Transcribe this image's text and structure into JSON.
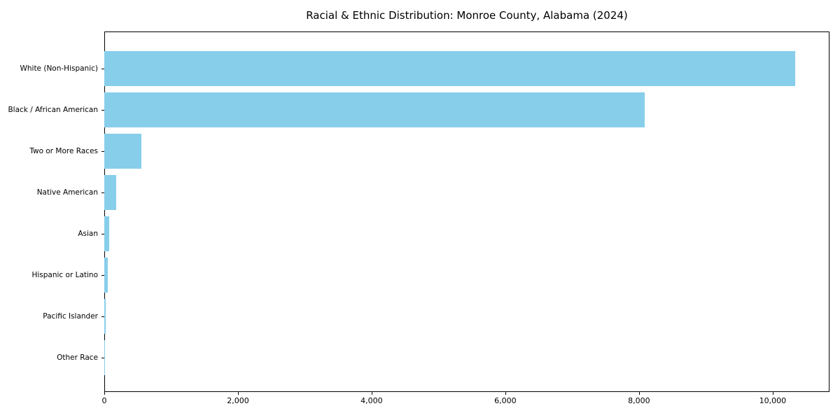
{
  "chart_data": {
    "type": "bar",
    "orientation": "horizontal",
    "title": "Racial & Ethnic Distribution: Monroe County, Alabama (2024)",
    "categories": [
      "White (Non-Hispanic)",
      "Black / African American",
      "Two or More Races",
      "Native American",
      "Asian",
      "Hispanic or Latino",
      "Pacific Islander",
      "Other Race"
    ],
    "values": [
      10340,
      8090,
      550,
      180,
      75,
      55,
      25,
      5
    ],
    "bar_color": "#87CEEB",
    "xlabel": "",
    "ylabel": "",
    "xlim": [
      0,
      10850
    ],
    "x_ticks": [
      0,
      2000,
      4000,
      6000,
      8000,
      10000
    ],
    "x_tick_labels": [
      "0",
      "2,000",
      "4,000",
      "6,000",
      "8,000",
      "10,000"
    ],
    "grid": false,
    "legend_position": "none",
    "background_color": "#ffffff",
    "frame_color": "#000000"
  }
}
